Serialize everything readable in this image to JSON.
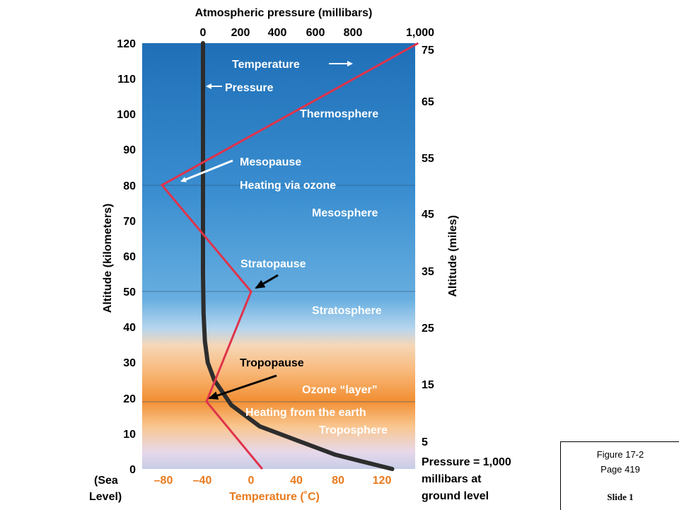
{
  "chart_data": {
    "type": "line",
    "title": "",
    "top_axis_label": "Atmospheric pressure (millibars)",
    "top_ticks": [
      "0",
      "200",
      "400",
      "600",
      "800",
      "1,000"
    ],
    "bottom_axis_label": "Temperature (˚C)",
    "bottom_ticks": [
      "–80",
      "–40",
      "0",
      "40",
      "80",
      "120"
    ],
    "left_axis_label": "Altitude (kilometers)",
    "left_ticks": [
      "120",
      "110",
      "100",
      "90",
      "80",
      "70",
      "60",
      "50",
      "40",
      "30",
      "20",
      "10",
      "0"
    ],
    "sea_level_label": [
      "(Sea",
      "Level)"
    ],
    "right_axis_label": "Altitude (miles)",
    "right_ticks": [
      "75",
      "65",
      "55",
      "45",
      "35",
      "25",
      "15",
      "5"
    ],
    "ylim_km": [
      0,
      120
    ],
    "temperature_range_c": [
      -100,
      160
    ],
    "pressure_range_mb": [
      0,
      1000
    ],
    "series": [
      {
        "name": "Temperature",
        "color": "#e0334b",
        "points": [
          [
            10,
            0
          ],
          [
            -40,
            19
          ],
          [
            0,
            50
          ],
          [
            -80,
            80
          ],
          [
            150,
            120
          ]
        ]
      },
      {
        "name": "Pressure",
        "color": "#2d2d2d",
        "points": [
          [
            1000,
            0
          ],
          [
            700,
            4
          ],
          [
            500,
            8
          ],
          [
            300,
            12
          ],
          [
            150,
            18
          ],
          [
            60,
            25
          ],
          [
            25,
            30
          ],
          [
            10,
            36
          ],
          [
            3,
            44
          ],
          [
            0,
            55
          ],
          [
            0,
            120
          ]
        ]
      }
    ],
    "layer_lines_km": [
      19,
      50,
      80
    ],
    "annotations": {
      "temperature": "Temperature",
      "pressure": "Pressure",
      "thermosphere": "Thermosphere",
      "mesopause": "Mesopause",
      "heating_ozone": "Heating via ozone",
      "mesosphere": "Mesosphere",
      "stratopause": "Stratopause",
      "stratosphere": "Stratosphere",
      "tropopause": "Tropopause",
      "ozone_layer": "Ozone “layer”",
      "heating_earth": "Heating from the earth",
      "troposphere": "Troposphere"
    },
    "ground_note": [
      "Pressure = 1,000",
      "millibars at",
      "ground level"
    ],
    "grid": false
  },
  "figure_ref": {
    "figure": "Figure 17-2",
    "page": "Page 419",
    "slide": "Slide 1"
  }
}
